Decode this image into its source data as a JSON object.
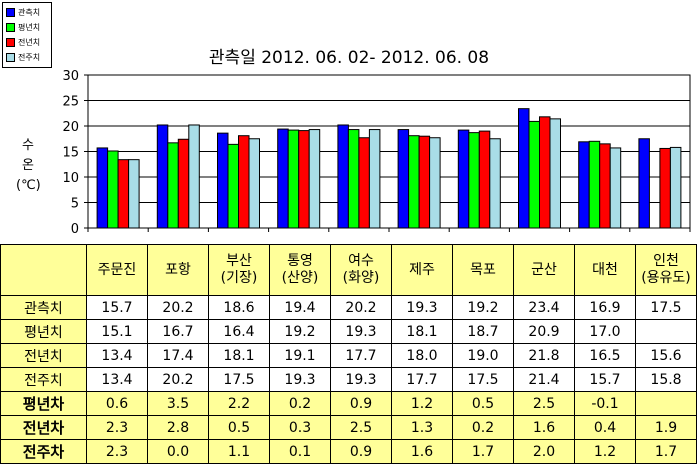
{
  "chart_data": {
    "type": "bar",
    "title": "관측일 2012. 06. 02-  2012. 06. 08",
    "ylabel_lines": [
      "수",
      "온",
      "(℃)"
    ],
    "ylim": [
      0,
      30
    ],
    "yticks": [
      0,
      5,
      10,
      15,
      20,
      25,
      30
    ],
    "grid": true,
    "legend_position": "top-left",
    "categories": [
      "주문진",
      "포항",
      "부산\n(기장)",
      "통영\n(산양)",
      "여수\n(화양)",
      "제주",
      "목포",
      "군산",
      "대천",
      "인천\n(용유도)"
    ],
    "series": [
      {
        "name": "관측치",
        "color": "#0000ff",
        "values": [
          15.7,
          20.2,
          18.6,
          19.4,
          20.2,
          19.3,
          19.2,
          23.4,
          16.9,
          17.5
        ]
      },
      {
        "name": "평년치",
        "color": "#00ff00",
        "values": [
          15.1,
          16.7,
          16.4,
          19.2,
          19.3,
          18.1,
          18.7,
          20.9,
          17.0,
          null
        ]
      },
      {
        "name": "전년치",
        "color": "#ff0000",
        "values": [
          13.4,
          17.4,
          18.1,
          19.1,
          17.7,
          18.0,
          19.0,
          21.8,
          16.5,
          15.6
        ]
      },
      {
        "name": "전주치",
        "color": "#a9dde7",
        "values": [
          13.4,
          20.2,
          17.5,
          19.3,
          19.3,
          17.7,
          17.5,
          21.4,
          15.7,
          15.8
        ]
      }
    ]
  },
  "table": {
    "header": [
      "주문진",
      "포항",
      "부산\n(기장)",
      "통영\n(산양)",
      "여수\n(화양)",
      "제주",
      "목포",
      "군산",
      "대천",
      "인천\n(용유도)"
    ],
    "rows": [
      {
        "label": "관측치",
        "bold": false,
        "diff": false,
        "values": [
          "15.7",
          "20.2",
          "18.6",
          "19.4",
          "20.2",
          "19.3",
          "19.2",
          "23.4",
          "16.9",
          "17.5"
        ]
      },
      {
        "label": "평년치",
        "bold": false,
        "diff": false,
        "values": [
          "15.1",
          "16.7",
          "16.4",
          "19.2",
          "19.3",
          "18.1",
          "18.7",
          "20.9",
          "17.0",
          ""
        ]
      },
      {
        "label": "전년치",
        "bold": false,
        "diff": false,
        "values": [
          "13.4",
          "17.4",
          "18.1",
          "19.1",
          "17.7",
          "18.0",
          "19.0",
          "21.8",
          "16.5",
          "15.6"
        ]
      },
      {
        "label": "전주치",
        "bold": false,
        "diff": false,
        "values": [
          "13.4",
          "20.2",
          "17.5",
          "19.3",
          "19.3",
          "17.7",
          "17.5",
          "21.4",
          "15.7",
          "15.8"
        ]
      },
      {
        "label": "평년차",
        "bold": true,
        "diff": true,
        "values": [
          "0.6",
          "3.5",
          "2.2",
          "0.2",
          "0.9",
          "1.2",
          "0.5",
          "2.5",
          "-0.1",
          ""
        ]
      },
      {
        "label": "전년차",
        "bold": true,
        "diff": true,
        "values": [
          "2.3",
          "2.8",
          "0.5",
          "0.3",
          "2.5",
          "1.3",
          "0.2",
          "1.6",
          "0.4",
          "1.9"
        ]
      },
      {
        "label": "전주차",
        "bold": true,
        "diff": true,
        "values": [
          "2.3",
          "0.0",
          "1.1",
          "0.1",
          "0.9",
          "1.6",
          "1.7",
          "2.0",
          "1.2",
          "1.7"
        ]
      }
    ]
  }
}
